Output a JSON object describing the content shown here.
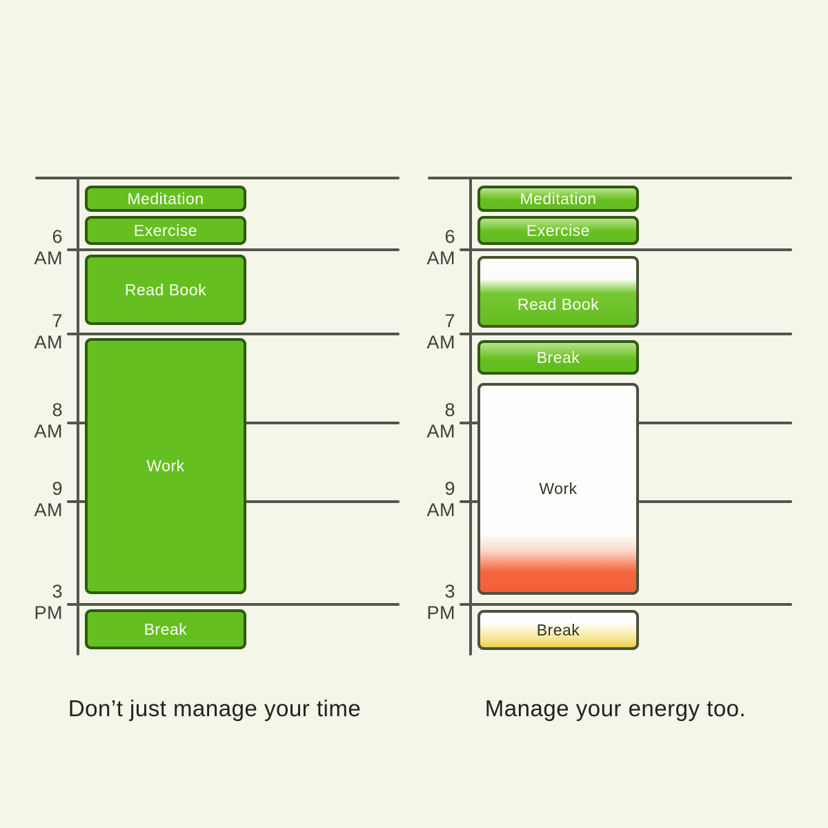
{
  "colors": {
    "background": "#f4f6e9",
    "block_green": "#65bf20",
    "block_green_border": "#2e5a0e",
    "axis_line": "#53564b",
    "energy_red": "#f25f36",
    "energy_yellow": "#efcf45"
  },
  "left_chart": {
    "caption": "Don’t just manage your time",
    "time_labels": [
      "6 AM",
      "7 AM",
      "8 AM",
      "9 AM",
      "3 PM"
    ],
    "blocks": [
      {
        "label": "Meditation",
        "fill": "green"
      },
      {
        "label": "Exercise",
        "fill": "green"
      },
      {
        "label": "Read Book",
        "fill": "green"
      },
      {
        "label": "Work",
        "fill": "green"
      },
      {
        "label": "Break",
        "fill": "green"
      }
    ]
  },
  "right_chart": {
    "caption": "Manage your energy too.",
    "time_labels": [
      "6 AM",
      "7 AM",
      "8 AM",
      "9 AM",
      "3 PM"
    ],
    "blocks": [
      {
        "label": "Meditation",
        "fill": "green-full-energy"
      },
      {
        "label": "Exercise",
        "fill": "green-full-energy"
      },
      {
        "label": "Read Book",
        "fill": "white-fading-to-green"
      },
      {
        "label": "Break",
        "fill": "green-full-energy"
      },
      {
        "label": "Work",
        "fill": "white-fading-to-red"
      },
      {
        "label": "Break",
        "fill": "white-fading-to-yellow"
      }
    ]
  }
}
